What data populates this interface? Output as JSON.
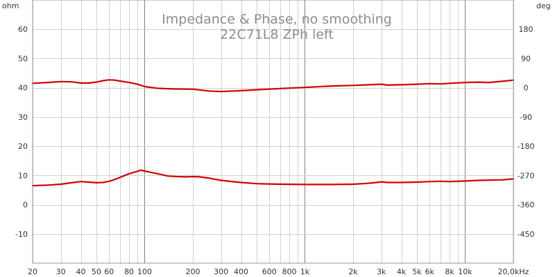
{
  "chart_data": {
    "type": "line",
    "title": "Impedance & Phase, no smoothing",
    "subtitle": "22C71L8 ZPh left",
    "left_axis": {
      "unit_label": "ohm",
      "range": [
        -20,
        70
      ],
      "ticks": [
        {
          "value": -10,
          "label": "-10"
        },
        {
          "value": 0,
          "label": "0"
        },
        {
          "value": 10,
          "label": "10"
        },
        {
          "value": 20,
          "label": "20"
        },
        {
          "value": 30,
          "label": "30"
        },
        {
          "value": 40,
          "label": "40"
        },
        {
          "value": 50,
          "label": "50"
        },
        {
          "value": 60,
          "label": "60"
        }
      ]
    },
    "right_axis": {
      "unit_label": "deg",
      "range": [
        -540,
        270
      ],
      "ticks": [
        {
          "value": -450,
          "label": "-450"
        },
        {
          "value": -360,
          "label": "-360"
        },
        {
          "value": -270,
          "label": "-270"
        },
        {
          "value": -180,
          "label": "-180"
        },
        {
          "value": -90,
          "label": "-90"
        },
        {
          "value": 0,
          "label": "0"
        },
        {
          "value": 90,
          "label": "90"
        },
        {
          "value": 180,
          "label": "180"
        }
      ]
    },
    "x_axis": {
      "scale": "log",
      "range": [
        20,
        20000
      ],
      "minor_lines": [
        20,
        30,
        40,
        50,
        60,
        70,
        80,
        90,
        100,
        200,
        300,
        400,
        500,
        600,
        700,
        800,
        900,
        1000,
        2000,
        3000,
        4000,
        5000,
        6000,
        7000,
        8000,
        9000,
        10000,
        20000
      ],
      "major_lines": [
        100,
        1000,
        10000
      ],
      "ticks": [
        {
          "value": 20,
          "label": "20"
        },
        {
          "value": 30,
          "label": "30"
        },
        {
          "value": 40,
          "label": "40"
        },
        {
          "value": 50,
          "label": "50"
        },
        {
          "value": 60,
          "label": "60"
        },
        {
          "value": 80,
          "label": "80"
        },
        {
          "value": 100,
          "label": "100"
        },
        {
          "value": 200,
          "label": "200"
        },
        {
          "value": 300,
          "label": "300"
        },
        {
          "value": 400,
          "label": "400"
        },
        {
          "value": 600,
          "label": "600"
        },
        {
          "value": 800,
          "label": "800"
        },
        {
          "value": 1000,
          "label": "1k"
        },
        {
          "value": 2000,
          "label": "2k"
        },
        {
          "value": 3000,
          "label": "3k"
        },
        {
          "value": 4000,
          "label": "4k"
        },
        {
          "value": 5000,
          "label": "5k"
        },
        {
          "value": 6000,
          "label": "6k"
        },
        {
          "value": 8000,
          "label": "8k"
        },
        {
          "value": 10000,
          "label": "10k"
        },
        {
          "value": 20000,
          "label": "20,0kHz"
        }
      ]
    },
    "grid": true,
    "series": [
      {
        "color": "#d40000",
        "axis": "left",
        "points": [
          [
            20,
            41.5
          ],
          [
            25,
            41.8
          ],
          [
            30,
            42.1
          ],
          [
            35,
            42.0
          ],
          [
            40,
            41.6
          ],
          [
            45,
            41.6
          ],
          [
            50,
            41.9
          ],
          [
            55,
            42.4
          ],
          [
            60,
            42.7
          ],
          [
            65,
            42.6
          ],
          [
            70,
            42.3
          ],
          [
            80,
            41.8
          ],
          [
            90,
            41.2
          ],
          [
            100,
            40.4
          ],
          [
            120,
            39.8
          ],
          [
            150,
            39.6
          ],
          [
            200,
            39.5
          ],
          [
            250,
            38.9
          ],
          [
            300,
            38.7
          ],
          [
            400,
            39.0
          ],
          [
            500,
            39.3
          ],
          [
            700,
            39.7
          ],
          [
            1000,
            40.1
          ],
          [
            1500,
            40.6
          ],
          [
            2000,
            40.8
          ],
          [
            2500,
            41.0
          ],
          [
            3000,
            41.2
          ],
          [
            3300,
            40.9
          ],
          [
            4000,
            41.0
          ],
          [
            5000,
            41.2
          ],
          [
            6000,
            41.4
          ],
          [
            7000,
            41.3
          ],
          [
            8000,
            41.5
          ],
          [
            10000,
            41.8
          ],
          [
            12000,
            41.9
          ],
          [
            14000,
            41.8
          ],
          [
            17000,
            42.2
          ],
          [
            20000,
            42.6
          ]
        ]
      },
      {
        "color": "#d40000",
        "axis": "left",
        "points": [
          [
            20,
            6.5
          ],
          [
            25,
            6.7
          ],
          [
            30,
            7.0
          ],
          [
            35,
            7.5
          ],
          [
            40,
            7.9
          ],
          [
            45,
            7.7
          ],
          [
            50,
            7.5
          ],
          [
            55,
            7.6
          ],
          [
            60,
            8.0
          ],
          [
            65,
            8.6
          ],
          [
            70,
            9.3
          ],
          [
            80,
            10.6
          ],
          [
            90,
            11.4
          ],
          [
            95,
            11.8
          ],
          [
            100,
            11.5
          ],
          [
            110,
            11.0
          ],
          [
            120,
            10.6
          ],
          [
            140,
            9.8
          ],
          [
            160,
            9.6
          ],
          [
            180,
            9.5
          ],
          [
            200,
            9.6
          ],
          [
            220,
            9.5
          ],
          [
            250,
            9.1
          ],
          [
            300,
            8.3
          ],
          [
            400,
            7.6
          ],
          [
            500,
            7.2
          ],
          [
            700,
            7.0
          ],
          [
            1000,
            6.9
          ],
          [
            1500,
            6.9
          ],
          [
            2000,
            7.0
          ],
          [
            2500,
            7.3
          ],
          [
            2800,
            7.6
          ],
          [
            3000,
            7.8
          ],
          [
            3300,
            7.6
          ],
          [
            4000,
            7.6
          ],
          [
            5000,
            7.7
          ],
          [
            6000,
            7.9
          ],
          [
            7000,
            8.0
          ],
          [
            8000,
            7.9
          ],
          [
            10000,
            8.1
          ],
          [
            12000,
            8.3
          ],
          [
            14000,
            8.4
          ],
          [
            17000,
            8.5
          ],
          [
            20000,
            8.8
          ]
        ]
      }
    ]
  }
}
